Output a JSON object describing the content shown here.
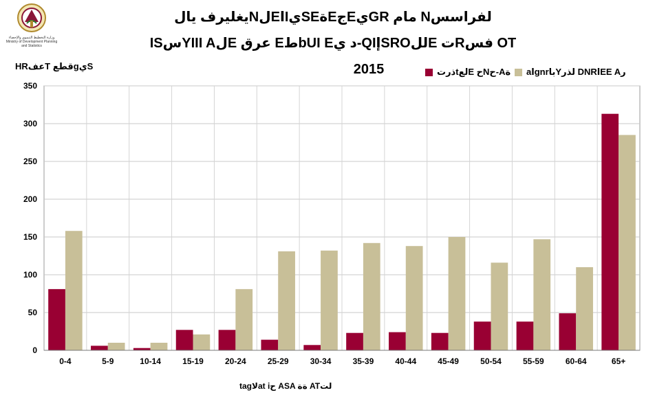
{
  "header": {
    "logo_icon": "ministry-emblem-icon",
    "logo_caption_ar": "وزارة التخطيط التنموي والإحصاء",
    "logo_caption_en": "Ministry of Development Planning and Statistics",
    "title_line1": "يغليرف يالNلEاIيSEةEجEيGR مام Nلفراسس",
    "title_line2": "ISسYIII AلE عرق EطbUI Eد ي-QIإSROللE تRفس OT",
    "year": "2015"
  },
  "chart_data": {
    "type": "bar",
    "ylabel": "HRعفT قطعgيS",
    "xlabel": "tagلاat iح ASA ةة ATلت",
    "ylim": [
      0,
      350
    ],
    "yticks": [
      0,
      50,
      100,
      150,
      200,
      250,
      300,
      350
    ],
    "grid": true,
    "legend_position": "top-right",
    "categories": [
      "0-4",
      "5-9",
      "10-14",
      "15-19",
      "20-24",
      "25-29",
      "30-34",
      "35-39",
      "40-44",
      "45-49",
      "50-54",
      "55-59",
      "60-64",
      "65+"
    ],
    "series": [
      {
        "name": "ذرتtلعE حNح-Aة",
        "color": "#990033",
        "values": [
          81,
          6,
          3,
          27,
          27,
          14,
          7,
          23,
          24,
          23,
          38,
          38,
          49,
          313
        ]
      },
      {
        "name": "aاgnrباYلذر DNRاEE Aر",
        "color": "#c8bf98",
        "values": [
          158,
          10,
          10,
          21,
          81,
          131,
          132,
          142,
          138,
          150,
          116,
          147,
          110,
          285
        ]
      }
    ]
  }
}
